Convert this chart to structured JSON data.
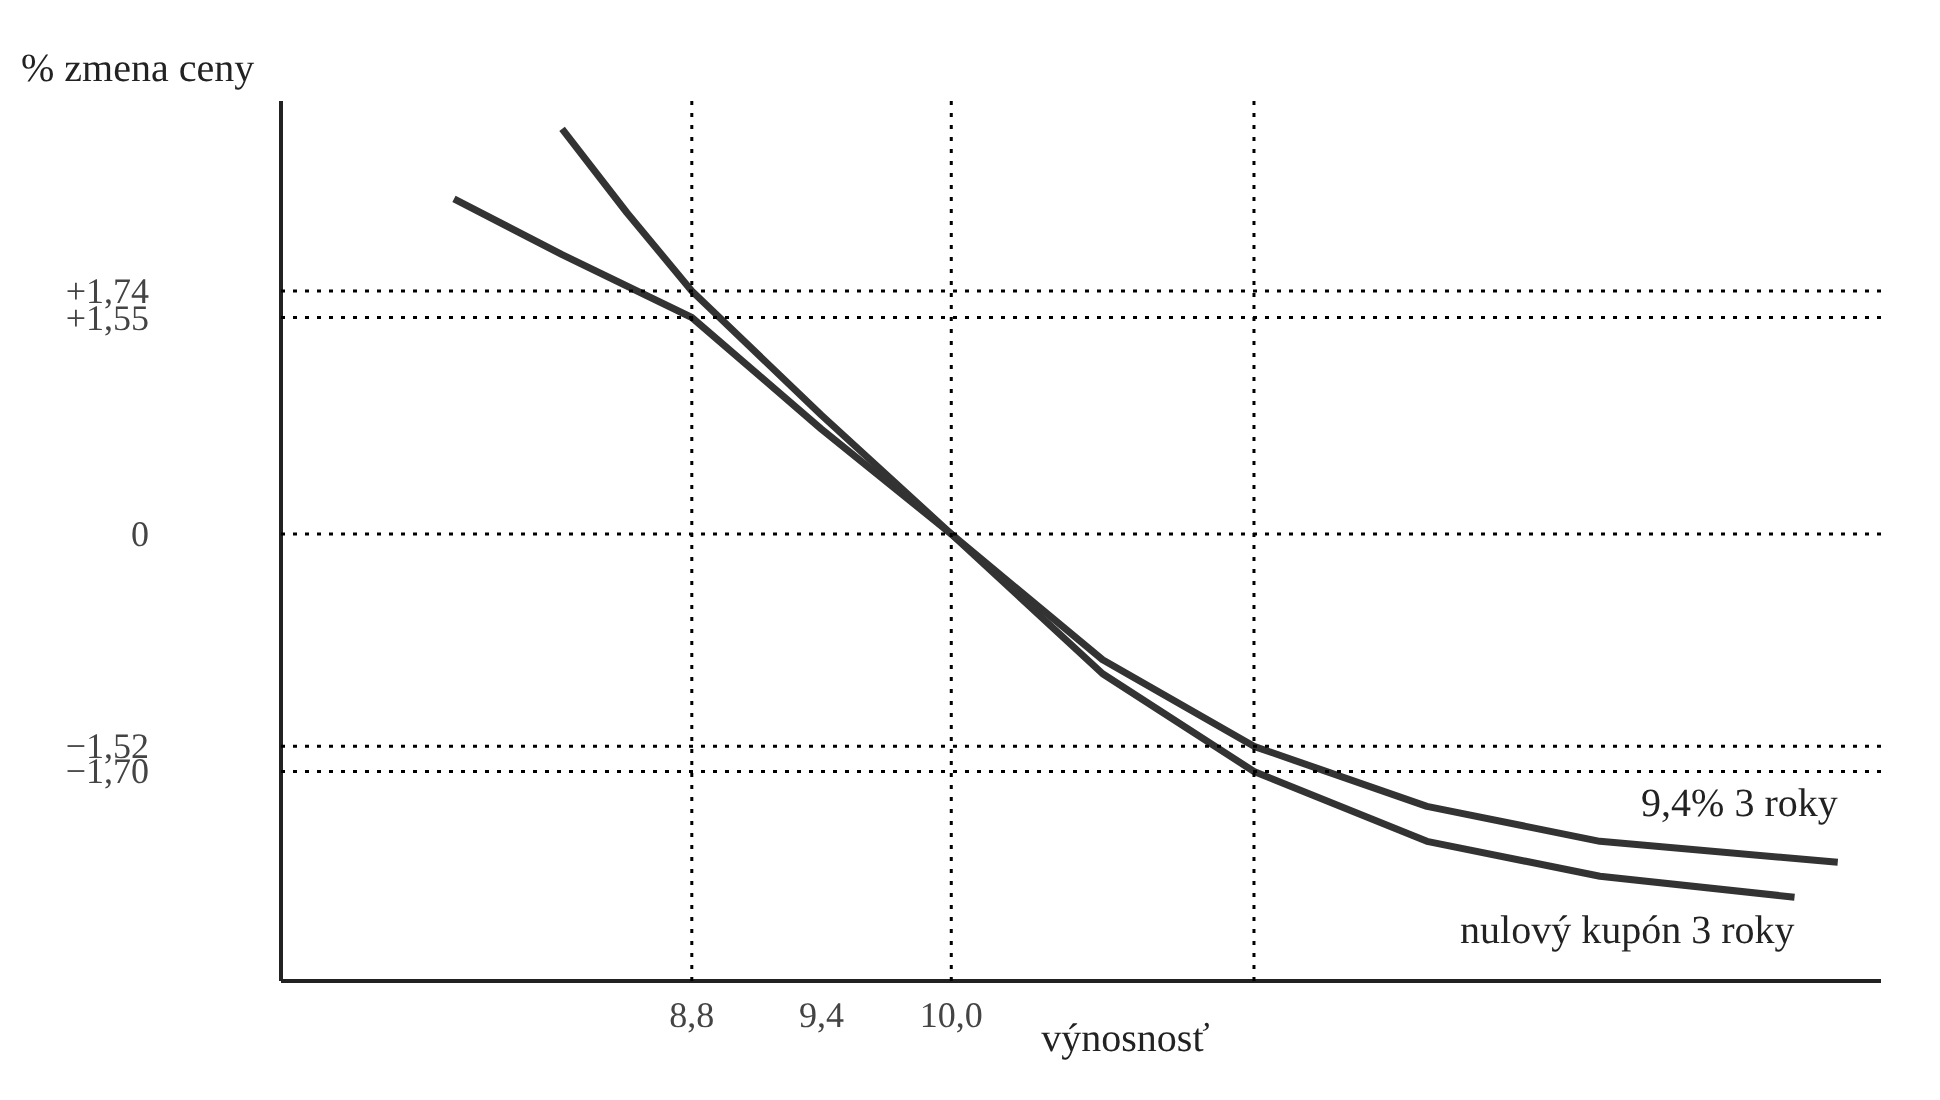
{
  "chart_data": {
    "type": "line",
    "xlabel": "výnosnosť",
    "ylabel": "% zmena ceny",
    "xlim": [
      6.9,
      14.3
    ],
    "ylim": [
      -3.2,
      3.1
    ],
    "xticks": [
      {
        "value": 8.8,
        "label": "8,8"
      },
      {
        "value": 9.4,
        "label": "9,4"
      },
      {
        "value": 10.0,
        "label": "10,0"
      }
    ],
    "yticks": [
      {
        "value": 1.74,
        "label": "+1,74"
      },
      {
        "value": 1.55,
        "label": "+1,55"
      },
      {
        "value": 0,
        "label": "0"
      },
      {
        "value": -1.52,
        "label": "−1,52"
      },
      {
        "value": -1.7,
        "label": "−1,70"
      }
    ],
    "series": [
      {
        "name": "9,4% 3 roky",
        "color": "#333333",
        "x": [
          7.7,
          8.2,
          8.8,
          9.4,
          10.0,
          10.7,
          11.4,
          12.2,
          13.0,
          14.1
        ],
        "values": [
          2.4,
          2.0,
          1.55,
          0.75,
          0,
          -0.9,
          -1.52,
          -1.95,
          -2.2,
          -2.35
        ]
      },
      {
        "name": "nulový kupón 3 roky",
        "color": "#333333",
        "x": [
          8.2,
          8.5,
          8.8,
          9.4,
          10.0,
          10.7,
          11.4,
          12.2,
          13.0,
          13.9
        ],
        "values": [
          2.9,
          2.3,
          1.74,
          0.85,
          0,
          -1.0,
          -1.7,
          -2.2,
          -2.45,
          -2.6
        ]
      }
    ],
    "ref_lines": [
      {
        "axis": "y",
        "value": 1.74,
        "color": "#000000",
        "line_style": "dotted"
      },
      {
        "axis": "y",
        "value": 1.55,
        "color": "#000000",
        "line_style": "dotted"
      },
      {
        "axis": "y",
        "value": 0,
        "color": "#000000",
        "line_style": "dotted"
      },
      {
        "axis": "y",
        "value": -1.52,
        "color": "#000000",
        "line_style": "dotted"
      },
      {
        "axis": "y",
        "value": -1.7,
        "color": "#000000",
        "line_style": "dotted"
      },
      {
        "axis": "x",
        "value": 8.8,
        "color": "#000000",
        "line_style": "dotted"
      },
      {
        "axis": "x",
        "value": 10.0,
        "color": "#000000",
        "line_style": "dotted"
      },
      {
        "axis": "x",
        "value": 11.4,
        "color": "#000000",
        "line_style": "dotted"
      }
    ],
    "grid": false,
    "legend": false,
    "marker": "none",
    "line_style": "solid"
  }
}
